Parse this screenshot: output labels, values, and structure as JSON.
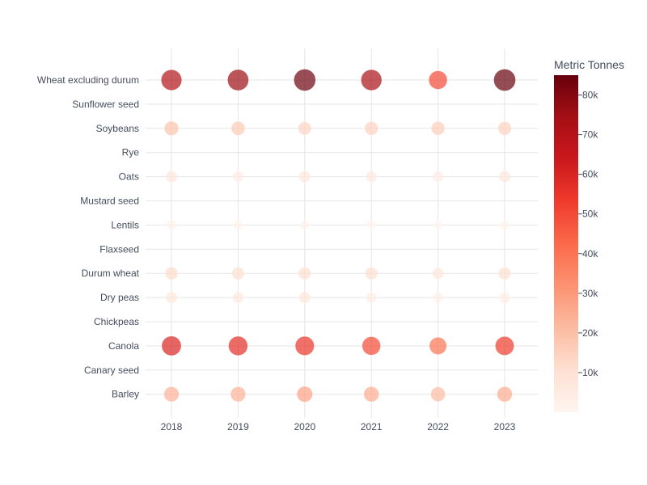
{
  "chart_data": {
    "type": "scatter",
    "title": "",
    "xlabel": "",
    "ylabel": "",
    "x": [
      "2018",
      "2019",
      "2020",
      "2021",
      "2022",
      "2023"
    ],
    "categories": [
      "Barley",
      "Canary seed",
      "Canola",
      "Chickpeas",
      "Dry peas",
      "Durum wheat",
      "Flaxseed",
      "Lentils",
      "Mustard seed",
      "Oats",
      "Rye",
      "Soybeans",
      "Sunflower seed",
      "Wheat excluding durum"
    ],
    "series": [
      {
        "category": "Wheat excluding durum",
        "values": [
          71000,
          76000,
          84000,
          73000,
          50000,
          85000
        ]
      },
      {
        "category": "Sunflower seed",
        "values": [
          null,
          null,
          null,
          null,
          null,
          null
        ]
      },
      {
        "category": "Soybeans",
        "values": [
          19000,
          17000,
          14000,
          15000,
          16000,
          15000
        ]
      },
      {
        "category": "Rye",
        "values": [
          null,
          null,
          null,
          null,
          null,
          null
        ]
      },
      {
        "category": "Oats",
        "values": [
          7000,
          5000,
          7000,
          6000,
          5000,
          7000
        ]
      },
      {
        "category": "Mustard seed",
        "values": [
          null,
          null,
          null,
          null,
          null,
          null
        ]
      },
      {
        "category": "Lentils",
        "values": [
          2000,
          1500,
          1500,
          1200,
          700,
          1000
        ]
      },
      {
        "category": "Flaxseed",
        "values": [
          null,
          null,
          null,
          null,
          null,
          null
        ]
      },
      {
        "category": "Durum wheat",
        "values": [
          12000,
          11000,
          11000,
          11000,
          7000,
          11000
        ]
      },
      {
        "category": "Dry peas",
        "values": [
          7000,
          6000,
          7000,
          5000,
          3000,
          5000
        ]
      },
      {
        "category": "Chickpeas",
        "values": [
          null,
          null,
          null,
          null,
          null,
          null
        ]
      },
      {
        "category": "Canola",
        "values": [
          60000,
          57000,
          55000,
          50000,
          40000,
          53000
        ]
      },
      {
        "category": "Canary seed",
        "values": [
          null,
          null,
          null,
          null,
          null,
          null
        ]
      },
      {
        "category": "Barley",
        "values": [
          24000,
          24000,
          28000,
          25000,
          21000,
          25000
        ]
      }
    ],
    "colorbar": {
      "title": "Metric Tonnes",
      "range": [
        0,
        85000
      ],
      "ticks": [
        10000,
        20000,
        30000,
        40000,
        50000,
        60000,
        70000,
        80000
      ],
      "tick_labels": [
        "10k",
        "20k",
        "30k",
        "40k",
        "50k",
        "60k",
        "70k",
        "80k"
      ],
      "colorscale": [
        "#fff5f0",
        "#fee0d2",
        "#fcbba1",
        "#fc9272",
        "#fb6a4a",
        "#ef3b2c",
        "#cb181d",
        "#a50f15",
        "#67000d"
      ]
    },
    "marker_opacity": 0.7,
    "grid": true,
    "legend": "colorbar-right"
  }
}
